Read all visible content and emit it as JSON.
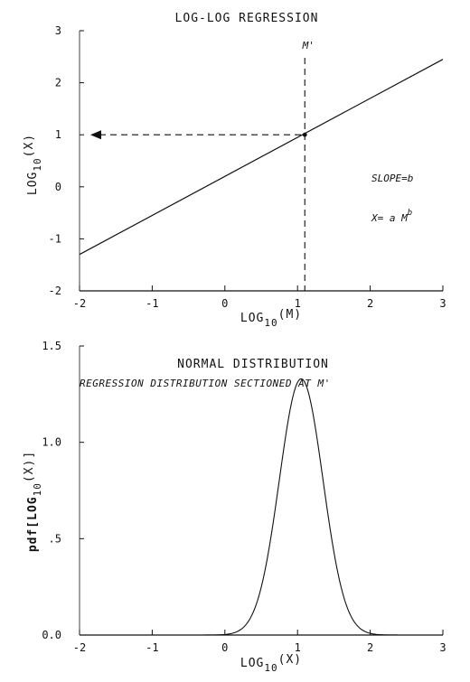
{
  "chart_data": [
    {
      "type": "line",
      "title": "LOG-LOG REGRESSION",
      "xlabel_main": "LOG",
      "xlabel_sub": "10",
      "xlabel_var": "(M)",
      "ylabel_main": "LOG",
      "ylabel_sub": "10",
      "ylabel_var": "(X)",
      "xlim": [
        -2,
        3
      ],
      "ylim": [
        -2,
        3
      ],
      "xticks": [
        -2,
        -1,
        0,
        1,
        2,
        3
      ],
      "yticks": [
        -2,
        -1,
        0,
        1,
        2,
        3
      ],
      "series": [
        {
          "x": [
            -2,
            3
          ],
          "y": [
            -1.3,
            2.45
          ]
        }
      ],
      "marker": {
        "x": 1.1,
        "y": 1.0,
        "label": "M'"
      },
      "annotations": {
        "slope": "SLOPE=b",
        "equation_base": "X= a M",
        "equation_exp": "b"
      }
    },
    {
      "type": "line",
      "title": "NORMAL DISTRIBUTION",
      "subtitle": "REGRESSION DISTRIBUTION SECTIONED AT M'",
      "xlabel_main": "LOG",
      "xlabel_sub": "10",
      "xlabel_var": "(X)",
      "ylabel_main": "pdf[LOG",
      "ylabel_sub": "10",
      "ylabel_var": "(X)]",
      "xlim": [
        -2,
        3
      ],
      "ylim": [
        0,
        1.5
      ],
      "xticks": [
        -2,
        -1,
        0,
        1,
        2,
        3
      ],
      "yticks": [
        0,
        0.5,
        1.0,
        1.5
      ],
      "ytick_labels": [
        "0.0",
        ".5",
        "1.0",
        "1.5"
      ],
      "series": [
        {
          "mean": 1.05,
          "sd": 0.3,
          "x_range": [
            -2,
            3
          ]
        }
      ]
    }
  ]
}
